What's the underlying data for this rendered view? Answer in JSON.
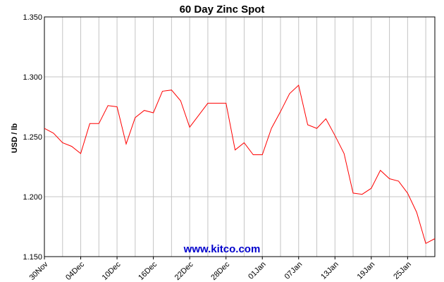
{
  "chart_data": {
    "type": "line",
    "title": "60 Day Zinc Spot",
    "ylabel": "USD / lb",
    "xlabel": "",
    "ylim": [
      1.15,
      1.35
    ],
    "yticks": [
      "1.350",
      "1.300",
      "1.250",
      "1.200",
      "1.150"
    ],
    "ytick_values": [
      1.35,
      1.3,
      1.25,
      1.2,
      1.15
    ],
    "x_tick_labels": [
      "30Nov",
      "04Dec",
      "10Dec",
      "16Dec",
      "22Dec",
      "28Dec",
      "01Jan",
      "07Jan",
      "13Jan",
      "19Jan",
      "25Jan"
    ],
    "x_tick_index": [
      0,
      4,
      8,
      12,
      16,
      20,
      24,
      28,
      32,
      36,
      40
    ],
    "grid": true,
    "line_color": "#ff0000",
    "series": [
      {
        "values": [
          1.257,
          1.253,
          1.245,
          1.242,
          1.236,
          1.261,
          1.261,
          1.276,
          1.275,
          1.244,
          1.266,
          1.272,
          1.27,
          1.288,
          1.289,
          1.28,
          1.258,
          1.268,
          1.278,
          1.278,
          1.278,
          1.239,
          1.245,
          1.235,
          1.235,
          1.257,
          1.271,
          1.286,
          1.293,
          1.26,
          1.257,
          1.265,
          1.251,
          1.236,
          1.203,
          1.202,
          1.207,
          1.222,
          1.215,
          1.213,
          1.203,
          1.187,
          1.161,
          1.165
        ]
      }
    ]
  },
  "watermark": {
    "text": "www.kitco.com",
    "color": "#0000cc"
  }
}
